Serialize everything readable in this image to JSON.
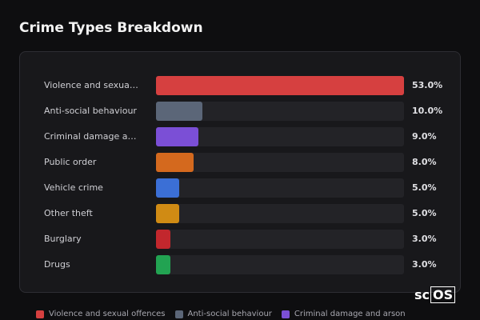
{
  "chart_data": {
    "type": "bar",
    "orientation": "horizontal",
    "title": "Crime Types Breakdown",
    "categories": [
      "Violence and sexual offences",
      "Anti-social behaviour",
      "Criminal damage and arson",
      "Public order",
      "Vehicle crime",
      "Other theft",
      "Burglary",
      "Drugs"
    ],
    "values": [
      53,
      10,
      9,
      8,
      5,
      5,
      3,
      3
    ],
    "value_labels": [
      "53.0%",
      "10.0%",
      "9.0%",
      "8.0%",
      "5.0%",
      "5.0%",
      "3.0%",
      "3.0%"
    ],
    "colors": [
      "#d64040",
      "#5b6678",
      "#7b4fd6",
      "#d4691e",
      "#3b6fd6",
      "#d08b14",
      "#c2272d",
      "#22a352"
    ],
    "legend": true
  },
  "logo": {
    "prefix": "sc",
    "boxed": "OS"
  }
}
